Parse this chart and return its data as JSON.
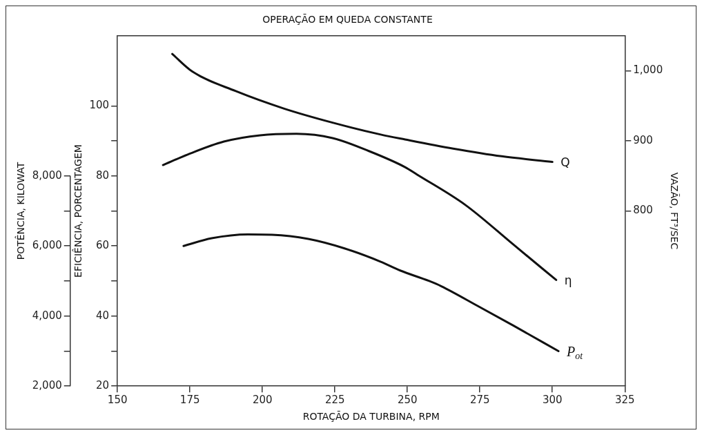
{
  "chart_data": {
    "type": "line",
    "title": "OPERAÇÃO EM QUEDA CONSTANTE",
    "xlabel": "ROTAÇÃO DA TURBINA, RPM",
    "ylabel": "EFICIÊNCIA, PORCENTAGEM",
    "y2label": "POTÊNCIA, KILOWAT",
    "y3label": "VAZÃO, FT³/SEC",
    "xlim": [
      150,
      325
    ],
    "xticks": [
      150,
      175,
      200,
      225,
      250,
      275,
      300,
      325
    ],
    "ylim": [
      20,
      120
    ],
    "yticks": [
      20,
      {
        "value": 30,
        "label": null
      },
      40,
      {
        "value": 50,
        "label": null
      },
      60,
      {
        "value": 70,
        "label": null
      },
      80,
      {
        "value": 90,
        "label": null
      },
      100
    ],
    "y2lim": [
      2000,
      12000
    ],
    "y2ticks": [
      {
        "value": 2000,
        "label": "2,000"
      },
      {
        "value": 3000,
        "label": null
      },
      {
        "value": 4000,
        "label": "4,000"
      },
      {
        "value": 5000,
        "label": null
      },
      {
        "value": 6000,
        "label": "6,000"
      },
      {
        "value": 7000,
        "label": null
      },
      {
        "value": 8000,
        "label": "8,000"
      }
    ],
    "y3lim": [
      550,
      1050
    ],
    "y3ticks": [
      800,
      900,
      {
        "value": 1000,
        "label": "1,000"
      }
    ],
    "legend": false,
    "marker": "none",
    "line_style": "solid",
    "series": [
      {
        "name": "Q",
        "color": "#111111",
        "axis": "y3",
        "x": [
          168.9,
          175.8,
          190.8,
          207.5,
          224.2,
          240.8,
          249.2,
          265.8,
          282.5,
          300
        ],
        "values": [
          1024,
          999,
          971,
          946,
          926,
          909,
          902,
          889,
          878,
          870
        ]
      },
      {
        "name": "η",
        "color": "#111111",
        "axis": "y",
        "x": [
          165.7,
          174.2,
          186.7,
          199.2,
          211.7,
          224.2,
          236.7,
          249.2,
          253.3,
          270,
          286.7,
          301.3
        ],
        "values": [
          83.1,
          86.1,
          89.8,
          91.6,
          92,
          90.8,
          87.1,
          82.5,
          80.4,
          71.7,
          60.3,
          50.3
        ]
      },
      {
        "name": "P$_{ot}$",
        "color": "#111111",
        "axis": "y2",
        "x": [
          172.8,
          182.5,
          195,
          203.3,
          215.8,
          228.3,
          240.8,
          247.5,
          257.5,
          261.7,
          274.2,
          286.7,
          302.1
        ],
        "values": [
          6000,
          6220,
          6330,
          6320,
          6200,
          5930,
          5550,
          5300,
          5000,
          4850,
          4290,
          3720,
          3000
        ]
      }
    ]
  }
}
